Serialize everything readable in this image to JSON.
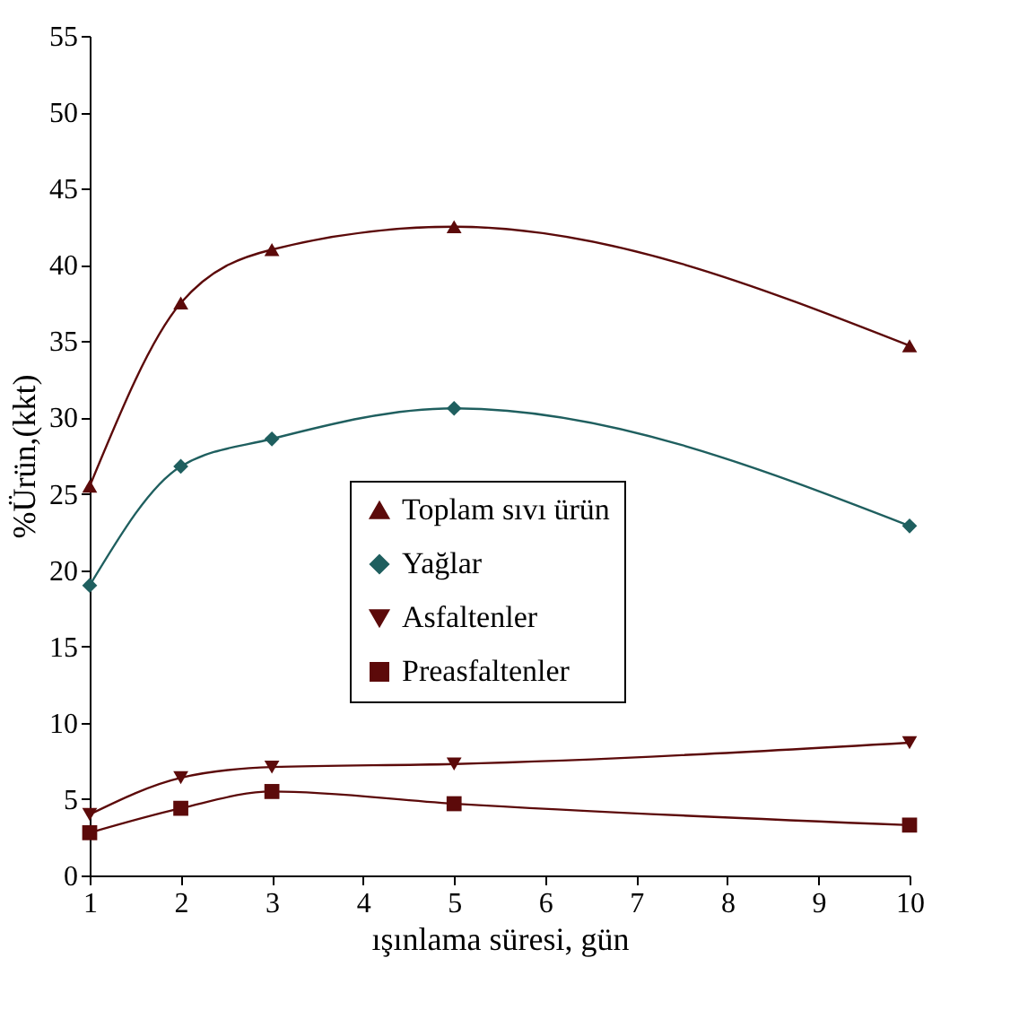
{
  "chart_data": {
    "type": "line",
    "xlabel": "ışınlama süresi, gün",
    "ylabel": "%Ürün,(kkt)",
    "xlim": [
      1,
      10
    ],
    "xticks": [
      1,
      2,
      3,
      4,
      5,
      6,
      7,
      8,
      9,
      10
    ],
    "ylim": [
      0,
      55
    ],
    "yticks": [
      0,
      5,
      10,
      15,
      20,
      25,
      30,
      35,
      40,
      45,
      50,
      55
    ],
    "x": [
      1,
      2,
      3,
      5,
      10
    ],
    "legend": "right",
    "grid": false,
    "series": [
      {
        "name": "Toplam sıvı ürün",
        "color": "#5c0a0a",
        "marker": "triangle-up",
        "values": [
          25.5,
          37.5,
          41,
          42.5,
          34.7
        ]
      },
      {
        "name": "Yağlar",
        "color": "#1f5f5f",
        "marker": "diamond",
        "values": [
          19,
          26.8,
          28.6,
          30.6,
          22.9
        ]
      },
      {
        "name": "Asfaltenler",
        "color": "#5c0a0a",
        "marker": "triangle-down",
        "values": [
          4,
          6.4,
          7.1,
          7.3,
          8.7
        ]
      },
      {
        "name": "Preasfaltenler",
        "color": "#5c0a0a",
        "marker": "square",
        "values": [
          2.8,
          4.4,
          5.5,
          4.7,
          3.3
        ]
      }
    ]
  }
}
